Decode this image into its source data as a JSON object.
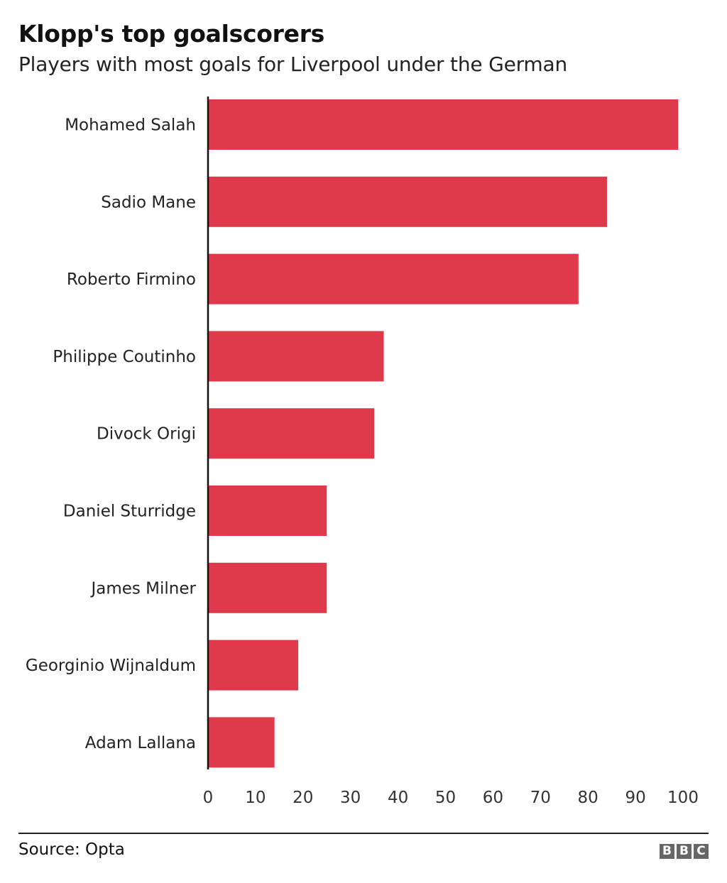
{
  "chart_data": {
    "type": "bar",
    "orientation": "horizontal",
    "title": "Klopp's top goalscorers",
    "subtitle": "Players with most goals for Liverpool under the German",
    "categories": [
      "Mohamed Salah",
      "Sadio Mane",
      "Roberto Firmino",
      "Philippe Coutinho",
      "Divock Origi",
      "Daniel Sturridge",
      "James Milner",
      "Georginio Wijnaldum",
      "Adam Lallana"
    ],
    "values": [
      99,
      84,
      78,
      37,
      35,
      25,
      25,
      19,
      14
    ],
    "xlim": [
      0,
      100
    ],
    "xticks": [
      "0",
      "10",
      "20",
      "30",
      "40",
      "50",
      "60",
      "70",
      "80",
      "90",
      "100"
    ],
    "grid": false,
    "bar_color": "#de3a4b",
    "source": "Source: Opta",
    "logo": "BBC"
  }
}
